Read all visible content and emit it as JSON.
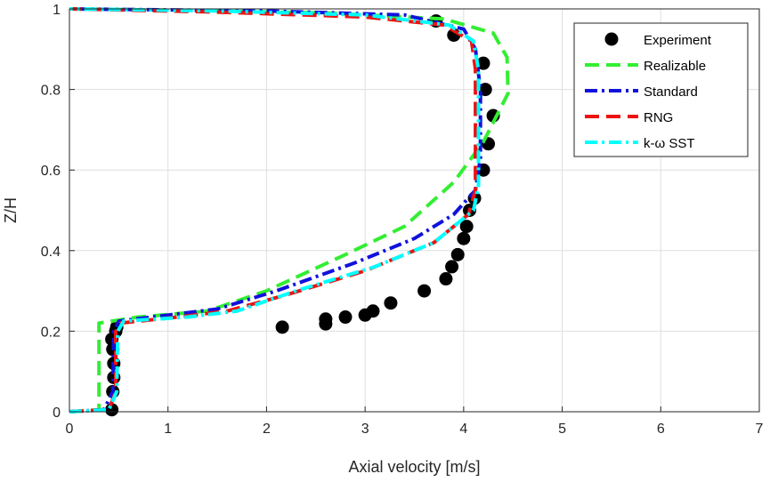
{
  "chart_data": {
    "type": "line",
    "title": "",
    "xlabel": "Axial velocity [m/s]",
    "ylabel": "Z/H",
    "xlim": [
      0,
      7
    ],
    "ylim": [
      0,
      1
    ],
    "x_ticks": [
      "0",
      "1",
      "2",
      "3",
      "4",
      "5",
      "6",
      "7"
    ],
    "y_ticks": [
      "0",
      "0.2",
      "0.4",
      "0.6",
      "0.8",
      "1"
    ],
    "grid": true,
    "legend_position": "top-right",
    "colors": {
      "experiment": "#000000",
      "realizable": "#33ee33",
      "standard": "#1111dd",
      "rng": "#ee1111",
      "kw_sst": "#00ffff"
    },
    "series": [
      {
        "name": "Experiment",
        "style": "markers",
        "color": "#000000",
        "points": [
          [
            0.43,
            0.005
          ],
          [
            0.44,
            0.05
          ],
          [
            0.45,
            0.085
          ],
          [
            0.45,
            0.12
          ],
          [
            0.44,
            0.155
          ],
          [
            0.43,
            0.18
          ],
          [
            0.47,
            0.2
          ],
          [
            0.48,
            0.21
          ],
          [
            2.16,
            0.21
          ],
          [
            2.6,
            0.218
          ],
          [
            2.6,
            0.23
          ],
          [
            2.8,
            0.235
          ],
          [
            3.0,
            0.24
          ],
          [
            3.08,
            0.25
          ],
          [
            3.26,
            0.27
          ],
          [
            3.6,
            0.3
          ],
          [
            3.82,
            0.33
          ],
          [
            3.88,
            0.36
          ],
          [
            3.94,
            0.39
          ],
          [
            4.0,
            0.43
          ],
          [
            4.03,
            0.46
          ],
          [
            4.06,
            0.5
          ],
          [
            4.11,
            0.53
          ],
          [
            4.2,
            0.6
          ],
          [
            4.25,
            0.665
          ],
          [
            4.3,
            0.735
          ],
          [
            4.22,
            0.8
          ],
          [
            4.2,
            0.865
          ],
          [
            3.9,
            0.935
          ],
          [
            3.72,
            0.97
          ]
        ]
      },
      {
        "name": "Realizable",
        "style": "dashed",
        "color": "#33ee33",
        "points": [
          [
            0.0,
            0.0
          ],
          [
            0.3,
            0.005
          ],
          [
            0.3,
            0.22
          ],
          [
            0.7,
            0.235
          ],
          [
            1.4,
            0.25
          ],
          [
            2.0,
            0.3
          ],
          [
            2.8,
            0.39
          ],
          [
            3.4,
            0.46
          ],
          [
            3.9,
            0.57
          ],
          [
            4.2,
            0.67
          ],
          [
            4.45,
            0.79
          ],
          [
            4.44,
            0.88
          ],
          [
            4.3,
            0.94
          ],
          [
            3.8,
            0.975
          ],
          [
            2.6,
            0.99
          ],
          [
            1.0,
            0.997
          ],
          [
            0.0,
            1.0
          ]
        ]
      },
      {
        "name": "Standard",
        "style": "dashdot",
        "color": "#1111dd",
        "points": [
          [
            0.0,
            0.0
          ],
          [
            0.35,
            0.005
          ],
          [
            0.44,
            0.05
          ],
          [
            0.45,
            0.2
          ],
          [
            0.5,
            0.225
          ],
          [
            1.0,
            0.24
          ],
          [
            1.5,
            0.255
          ],
          [
            2.1,
            0.3
          ],
          [
            2.9,
            0.37
          ],
          [
            3.5,
            0.43
          ],
          [
            3.9,
            0.49
          ],
          [
            4.12,
            0.55
          ],
          [
            4.17,
            0.63
          ],
          [
            4.17,
            0.8
          ],
          [
            4.12,
            0.9
          ],
          [
            4.0,
            0.95
          ],
          [
            3.4,
            0.985
          ],
          [
            2.0,
            0.995
          ],
          [
            0.8,
            0.998
          ],
          [
            0.0,
            1.0
          ]
        ]
      },
      {
        "name": "RNG",
        "style": "dashed",
        "color": "#ee1111",
        "points": [
          [
            0.0,
            0.0
          ],
          [
            0.4,
            0.005
          ],
          [
            0.47,
            0.05
          ],
          [
            0.47,
            0.2
          ],
          [
            0.52,
            0.22
          ],
          [
            1.1,
            0.235
          ],
          [
            1.6,
            0.25
          ],
          [
            2.2,
            0.29
          ],
          [
            3.0,
            0.35
          ],
          [
            3.7,
            0.42
          ],
          [
            4.05,
            0.49
          ],
          [
            4.12,
            0.55
          ],
          [
            4.12,
            0.65
          ],
          [
            4.12,
            0.85
          ],
          [
            4.08,
            0.92
          ],
          [
            3.8,
            0.96
          ],
          [
            3.0,
            0.98
          ],
          [
            1.5,
            0.992
          ],
          [
            0.6,
            0.997
          ],
          [
            0.0,
            1.0
          ]
        ]
      },
      {
        "name": "k-ω SST",
        "style": "dashdot",
        "color": "#00ffff",
        "points": [
          [
            0.0,
            0.0
          ],
          [
            0.4,
            0.005
          ],
          [
            0.48,
            0.05
          ],
          [
            0.49,
            0.2
          ],
          [
            0.55,
            0.225
          ],
          [
            1.2,
            0.235
          ],
          [
            1.7,
            0.25
          ],
          [
            2.3,
            0.3
          ],
          [
            3.1,
            0.36
          ],
          [
            3.7,
            0.42
          ],
          [
            4.1,
            0.5
          ],
          [
            4.15,
            0.56
          ],
          [
            4.15,
            0.7
          ],
          [
            4.15,
            0.85
          ],
          [
            4.1,
            0.92
          ],
          [
            3.85,
            0.96
          ],
          [
            3.0,
            0.985
          ],
          [
            1.5,
            0.995
          ],
          [
            0.6,
            0.998
          ],
          [
            0.0,
            1.0
          ]
        ]
      }
    ]
  }
}
